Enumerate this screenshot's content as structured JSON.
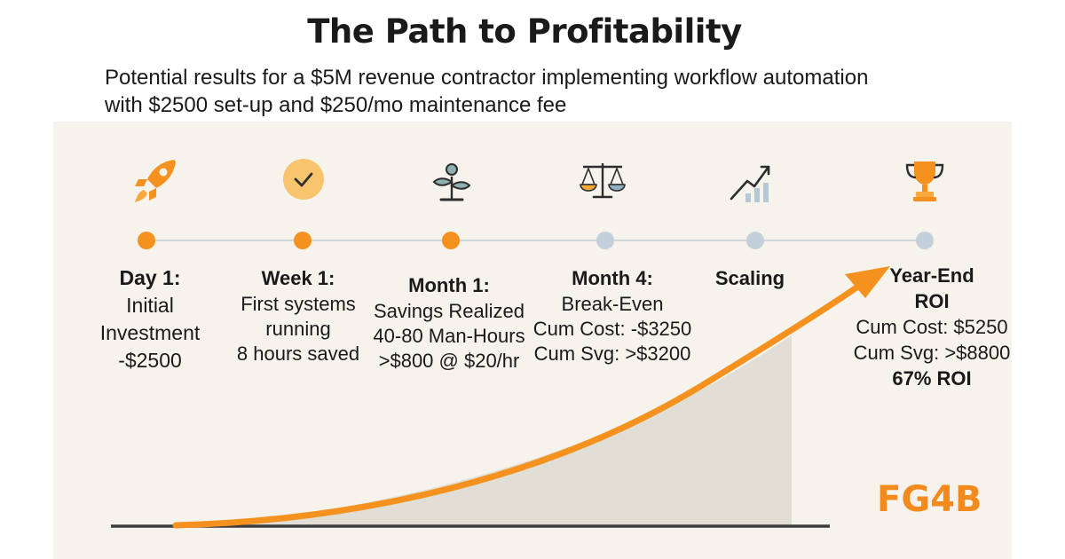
{
  "header": {
    "title": "The Path to Profitability",
    "subtitle_line1": "Potential results for a $5M revenue contractor implementing workflow automation",
    "subtitle_line2": "with $2500 set-up and $250/mo maintenance fee"
  },
  "colors": {
    "accent_orange": "#f5921f",
    "completed_dot": "#f5921f",
    "pending_dot": "#c3d0da",
    "timeline_line": "#cfd6db",
    "shaded_area": "#e0ded5",
    "panel_bg": "#f6f3ec",
    "logo": "#f28a1e"
  },
  "timeline": {
    "milestones": [
      {
        "icon": "rocket-icon",
        "status": "completed",
        "head": "Day 1:",
        "lines": [
          "Initial",
          "Investment",
          "-$2500"
        ]
      },
      {
        "icon": "check-circle-icon",
        "status": "completed",
        "head": "Week 1:",
        "lines": [
          "First systems",
          "running",
          "8 hours saved"
        ]
      },
      {
        "icon": "sprout-icon",
        "status": "completed",
        "head": "Month 1:",
        "lines": [
          "Savings Realized",
          "40-80 Man-Hours",
          ">$800 @ $20/hr"
        ]
      },
      {
        "icon": "balance-scale-icon",
        "status": "pending",
        "head": "Month 4:",
        "lines": [
          "Break-Even",
          "Cum Cost: -$3250",
          "Cum Svg: >$3200"
        ]
      },
      {
        "icon": "growth-chart-icon",
        "status": "pending",
        "head": "Scaling",
        "lines": []
      },
      {
        "icon": "trophy-icon",
        "status": "pending",
        "head": "Year-End",
        "head2": "ROI",
        "lines": [
          "Cum Cost: $5250",
          "Cum Svg: >$8800"
        ],
        "roi": "67% ROI"
      }
    ]
  },
  "logo": {
    "text": "FG4B"
  }
}
